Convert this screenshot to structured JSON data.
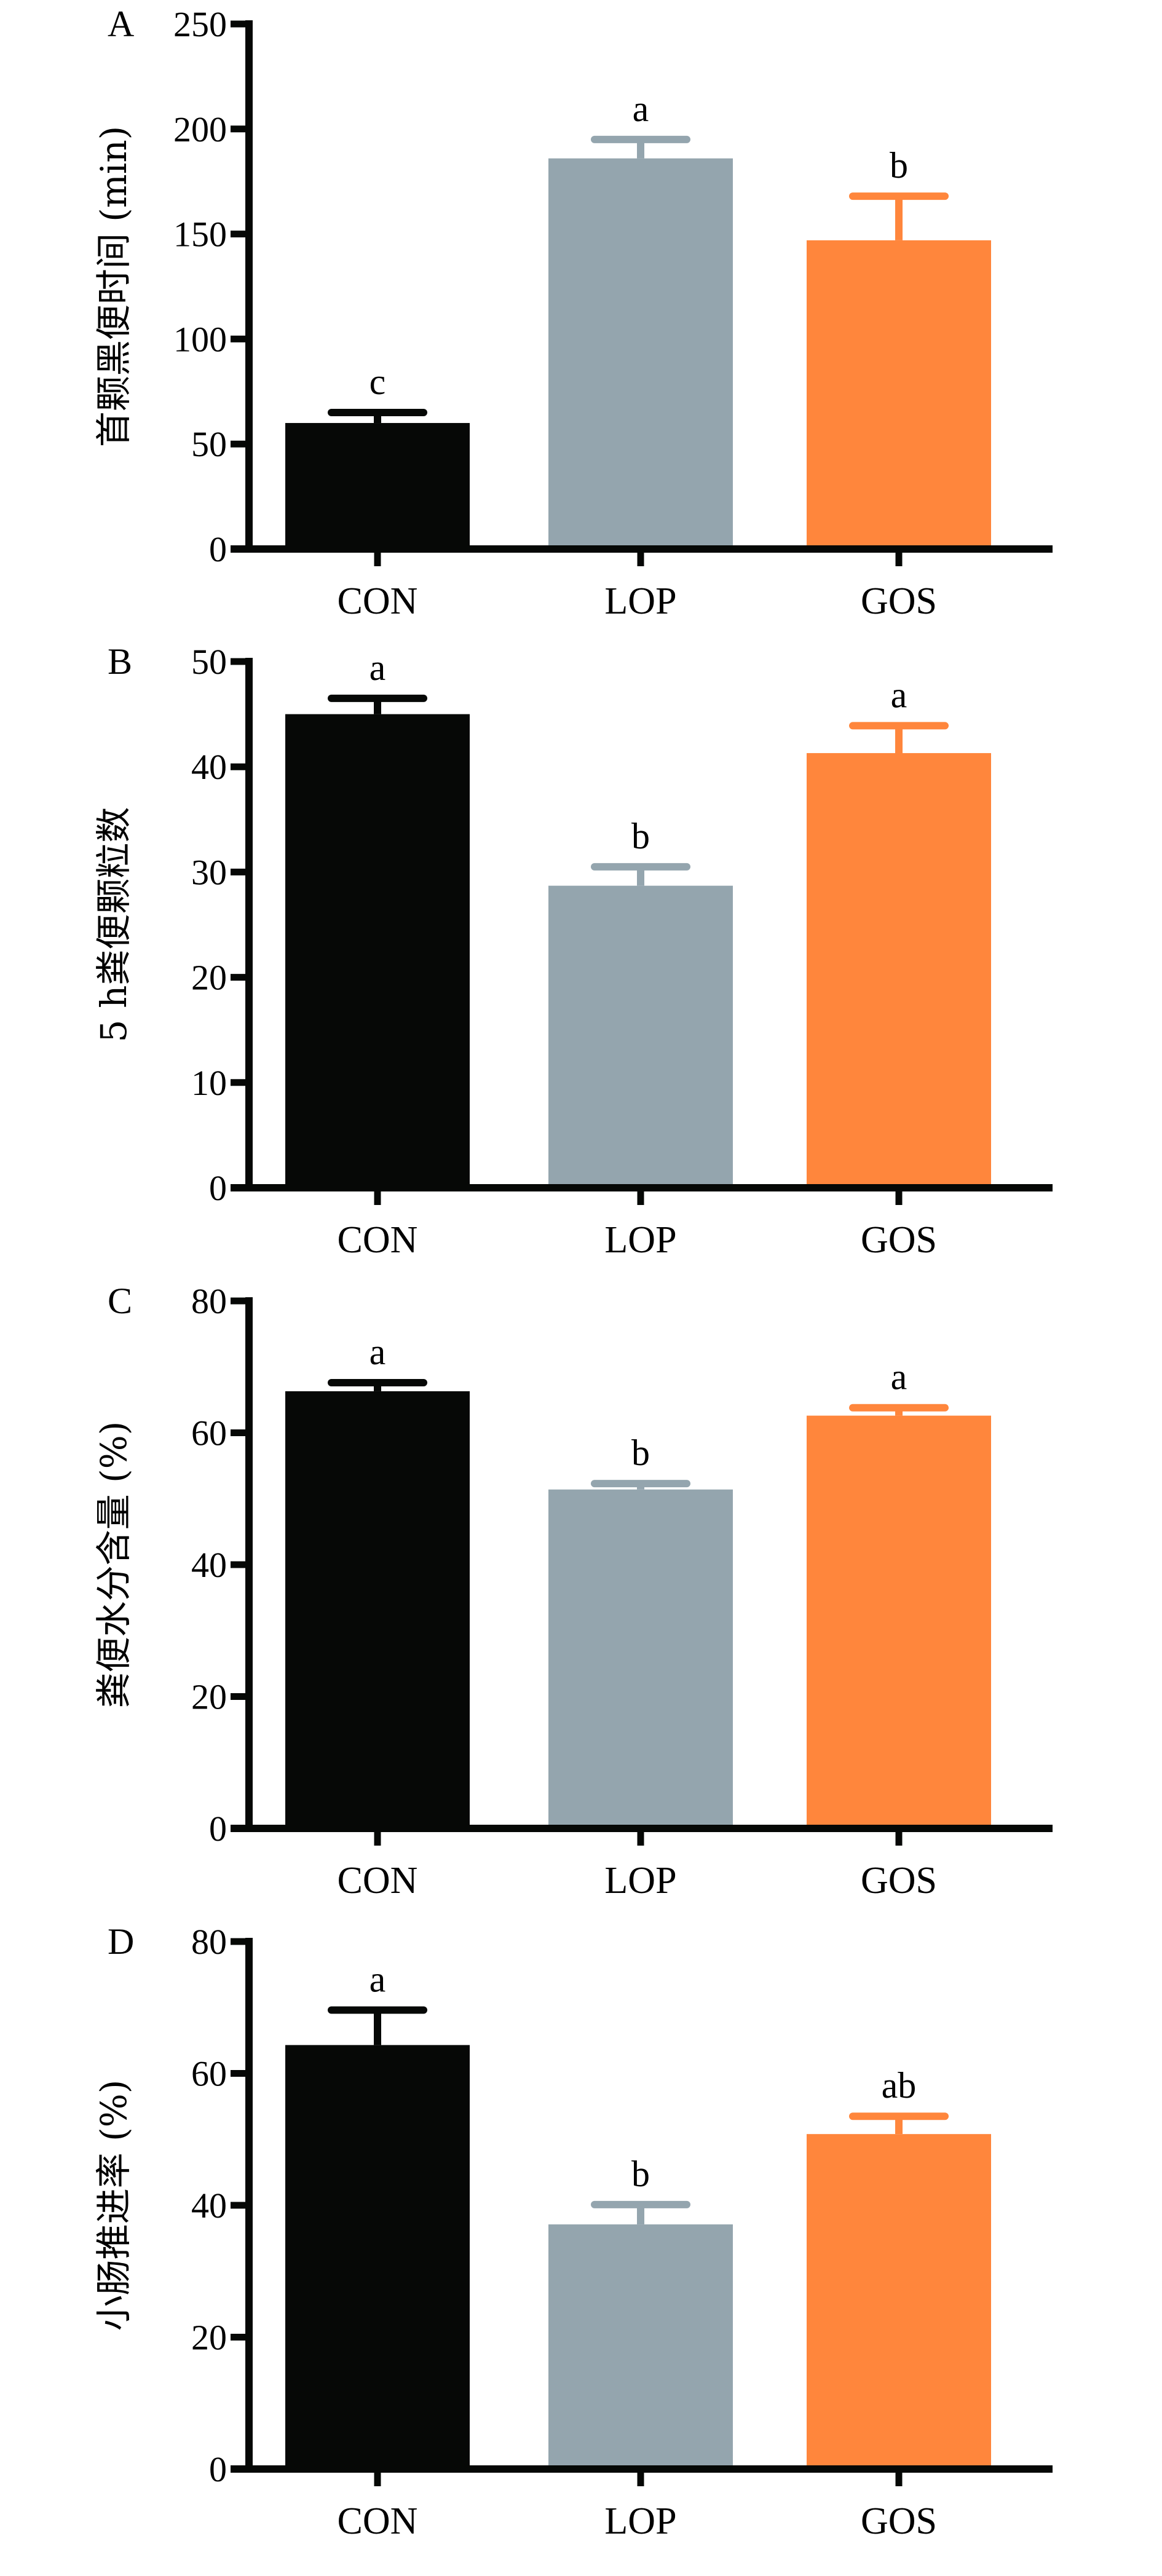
{
  "chart_data": [
    {
      "type": "bar",
      "panel": "A",
      "title": "",
      "xlabel": "",
      "ylabel": "首颗黑便时间 (min)",
      "categories": [
        "CON",
        "LOP",
        "GOS"
      ],
      "values": [
        60,
        186,
        147
      ],
      "error_upper": [
        65,
        195,
        168
      ],
      "significance": [
        "c",
        "a",
        "b"
      ],
      "colors": [
        "#060806",
        "#94A5AE",
        "#FF863C"
      ],
      "ylim": [
        0,
        250
      ],
      "yticks": [
        0,
        50,
        100,
        150,
        200,
        250
      ],
      "grid": false,
      "legend": "none"
    },
    {
      "type": "bar",
      "panel": "B",
      "title": "",
      "xlabel": "",
      "ylabel": "5 h粪便颗粒数",
      "categories": [
        "CON",
        "LOP",
        "GOS"
      ],
      "values": [
        45,
        28.7,
        41.3
      ],
      "error_upper": [
        46.5,
        30.5,
        43.9
      ],
      "significance": [
        "a",
        "b",
        "a"
      ],
      "colors": [
        "#060806",
        "#94A5AE",
        "#FF863C"
      ],
      "ylim": [
        0,
        50
      ],
      "yticks": [
        0,
        10,
        20,
        30,
        40,
        50
      ],
      "grid": false,
      "legend": "none"
    },
    {
      "type": "bar",
      "panel": "C",
      "title": "",
      "xlabel": "",
      "ylabel": "粪便水分含量 (%)",
      "categories": [
        "CON",
        "LOP",
        "GOS"
      ],
      "values": [
        66.3,
        51.4,
        62.6
      ],
      "error_upper": [
        67.6,
        52.3,
        63.8
      ],
      "significance": [
        "a",
        "b",
        "a"
      ],
      "colors": [
        "#060806",
        "#94A5AE",
        "#FF863C"
      ],
      "ylim": [
        0,
        80
      ],
      "yticks": [
        0,
        20,
        40,
        60,
        80
      ],
      "grid": false,
      "legend": "none"
    },
    {
      "type": "bar",
      "panel": "D",
      "title": "",
      "xlabel": "",
      "ylabel": "小肠推进率 (%)",
      "categories": [
        "CON",
        "LOP",
        "GOS"
      ],
      "values": [
        64.3,
        37.1,
        50.8
      ],
      "error_upper": [
        69.6,
        40.1,
        53.5
      ],
      "significance": [
        "a",
        "b",
        "ab"
      ],
      "colors": [
        "#060806",
        "#94A5AE",
        "#FF863C"
      ],
      "ylim": [
        0,
        80
      ],
      "yticks": [
        0,
        20,
        40,
        60,
        80
      ],
      "grid": false,
      "legend": "none"
    }
  ]
}
